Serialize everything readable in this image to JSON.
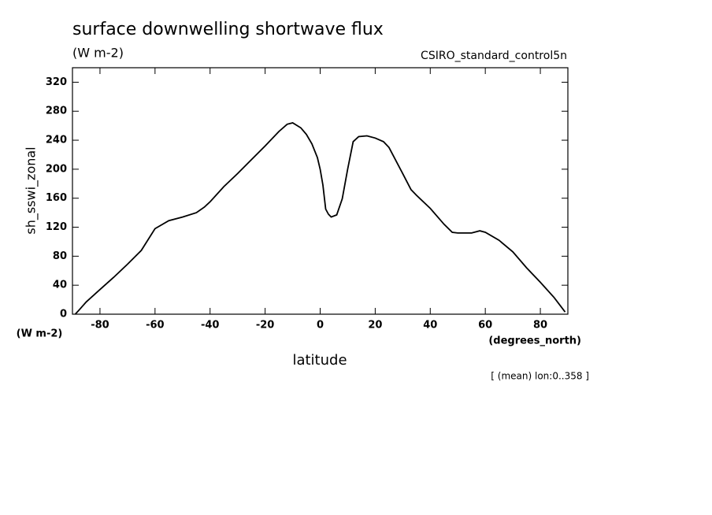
{
  "chart_data": {
    "type": "line",
    "title": "surface downwelling shortwave flux",
    "subtitle": "(W m-2)",
    "source": "CSIRO_standard_control5n",
    "y_label": "sh_sswi_zonal",
    "y_units": "(W m-2)",
    "x_label": "latitude",
    "x_units": "(degrees_north)",
    "note": "[ (mean) lon:0..358 ]",
    "x": [
      -89,
      -88,
      -85,
      -80,
      -75,
      -70,
      -65,
      -60,
      -55,
      -50,
      -45,
      -42,
      -40,
      -35,
      -30,
      -25,
      -20,
      -15,
      -12,
      -10,
      -7,
      -5,
      -3,
      -1,
      0,
      1,
      2,
      3,
      4,
      6,
      8,
      10,
      12,
      14,
      17,
      20,
      23,
      25,
      30,
      33,
      35,
      40,
      45,
      48,
      50,
      55,
      58,
      60,
      65,
      70,
      75,
      80,
      85,
      89
    ],
    "series": [
      {
        "name": "sh_sswi_zonal",
        "color": "#000000",
        "values": [
          0,
          4,
          17,
          34,
          51,
          69,
          88,
          118,
          129,
          134,
          140,
          148,
          155,
          176,
          194,
          213,
          232,
          252,
          262,
          264,
          257,
          248,
          235,
          216,
          200,
          178,
          145,
          138,
          134,
          137,
          159,
          200,
          238,
          245,
          246,
          243,
          238,
          230,
          194,
          172,
          164,
          146,
          124,
          113,
          112,
          112,
          115,
          113,
          102,
          86,
          64,
          44,
          23,
          3
        ]
      }
    ],
    "xlim": [
      -90,
      90
    ],
    "xticks": [
      -80,
      -60,
      -40,
      -20,
      0,
      20,
      40,
      60,
      80
    ],
    "ylim": [
      0,
      340
    ],
    "yticks": [
      0,
      40,
      80,
      120,
      160,
      200,
      240,
      280,
      320
    ]
  }
}
